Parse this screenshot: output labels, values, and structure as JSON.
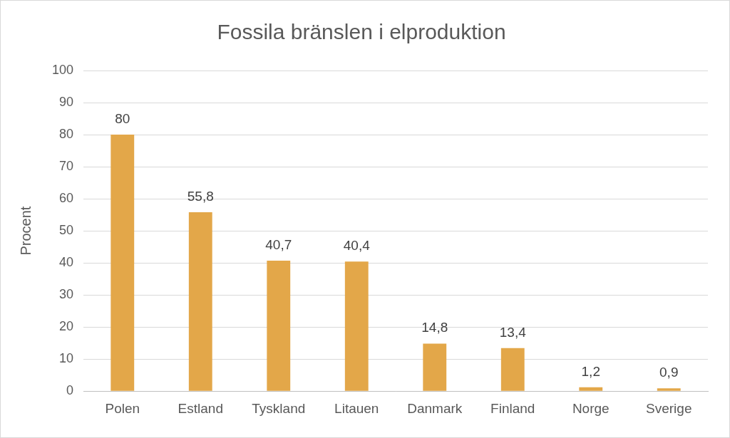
{
  "chart_data": {
    "type": "bar",
    "title": "Fossila bränslen i elproduktion",
    "y_label": "Procent",
    "categories": [
      "Polen",
      "Estland",
      "Tyskland",
      "Litauen",
      "Danmark",
      "Finland",
      "Norge",
      "Sverige"
    ],
    "values": [
      80,
      55.8,
      40.7,
      40.4,
      14.8,
      13.4,
      1.2,
      0.9
    ],
    "value_labels": [
      "80",
      "55,8",
      "40,7",
      "40,4",
      "14,8",
      "13,4",
      "1,2",
      "0,9"
    ],
    "color": "#e3a749",
    "ylim": [
      0,
      100
    ],
    "yticks": [
      0,
      10,
      20,
      30,
      40,
      50,
      60,
      70,
      80,
      90,
      100
    ],
    "grid": true,
    "data_labels": true
  }
}
